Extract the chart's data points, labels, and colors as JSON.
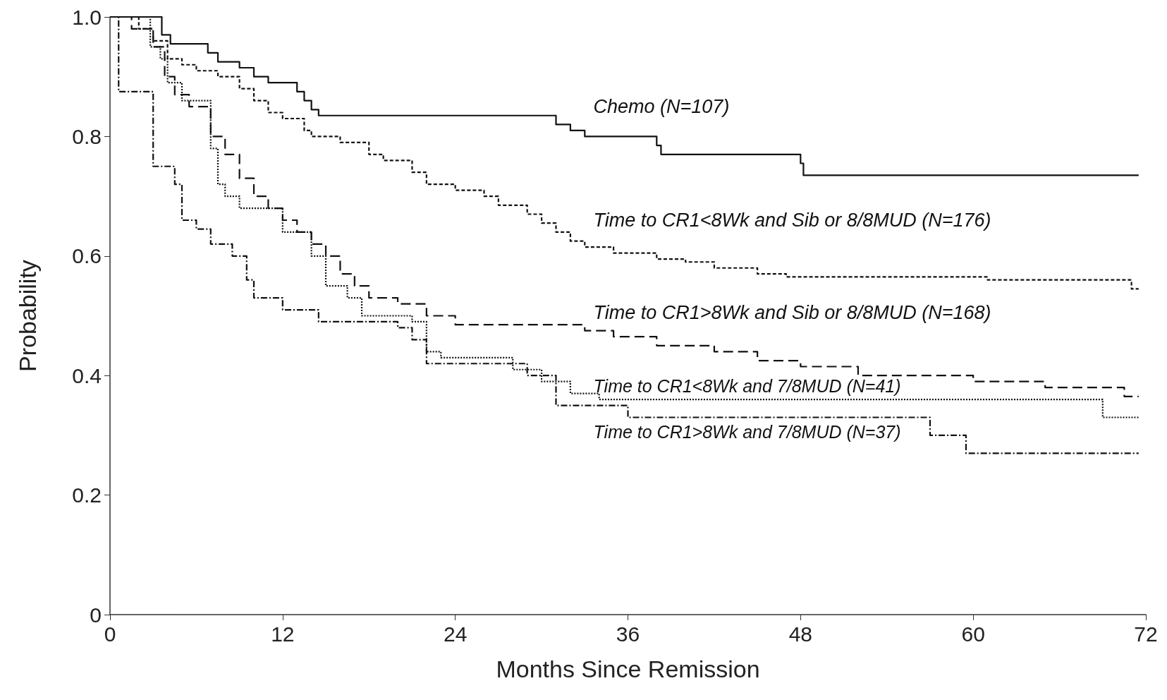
{
  "chart_data": {
    "type": "step",
    "xlabel": "Months Since Remission",
    "ylabel": "Probability",
    "xlim": [
      0,
      72
    ],
    "xticks": [
      0,
      12,
      24,
      36,
      48,
      60,
      72
    ],
    "ylim": [
      0,
      1
    ],
    "yticks": [
      0,
      0.2,
      0.4,
      0.6,
      0.8,
      {
        "value": 1,
        "label": "1.0"
      }
    ],
    "grid": false,
    "legend": false,
    "marker": "none",
    "series": [
      {
        "name": "Chemo (N=107)",
        "color": "#111111",
        "line_style": "solid",
        "x": [
          0,
          3.6,
          4.2,
          6.8,
          7.5,
          9,
          10,
          11,
          13,
          13.5,
          14,
          14.5,
          31,
          32,
          33,
          38,
          38.3,
          48,
          48.2,
          71.5
        ],
        "values": [
          1,
          0.97,
          0.955,
          0.94,
          0.925,
          0.915,
          0.9,
          0.89,
          0.875,
          0.86,
          0.845,
          0.835,
          0.82,
          0.81,
          0.8,
          0.785,
          0.77,
          0.755,
          0.735,
          0.735
        ]
      },
      {
        "name": "Time to CR1<8Wk and Sib or 8/8MUD (N=176)",
        "color": "#111111",
        "line_style": "dashed",
        "x": [
          0,
          2,
          3,
          4,
          5,
          6,
          7.5,
          9,
          10,
          11,
          12,
          13.5,
          14,
          16,
          18,
          19,
          21,
          22,
          24,
          26,
          27,
          29,
          30,
          31,
          32,
          33,
          35,
          38,
          40,
          42,
          45,
          47,
          61,
          71,
          71.5
        ],
        "values": [
          1,
          0.98,
          0.96,
          0.93,
          0.92,
          0.91,
          0.9,
          0.88,
          0.86,
          0.84,
          0.83,
          0.81,
          0.8,
          0.79,
          0.77,
          0.76,
          0.74,
          0.72,
          0.71,
          0.7,
          0.685,
          0.67,
          0.655,
          0.64,
          0.625,
          0.615,
          0.605,
          0.595,
          0.59,
          0.58,
          0.57,
          0.565,
          0.56,
          0.545,
          0.545
        ]
      },
      {
        "name": "Time to CR1>8Wk and Sib or 8/8MUD (N=168)",
        "color": "#111111",
        "line_style": "longdash",
        "x": [
          0,
          1.5,
          3,
          3.8,
          4.5,
          5.5,
          7,
          8,
          9,
          10,
          11,
          12,
          13,
          14,
          15,
          16,
          17,
          18,
          20,
          22,
          24,
          33,
          35,
          38,
          42,
          45,
          48,
          52,
          60,
          65,
          70.5,
          71.5
        ],
        "values": [
          1,
          0.98,
          0.95,
          0.9,
          0.87,
          0.85,
          0.8,
          0.77,
          0.73,
          0.7,
          0.68,
          0.66,
          0.64,
          0.62,
          0.6,
          0.57,
          0.55,
          0.53,
          0.52,
          0.5,
          0.485,
          0.475,
          0.465,
          0.45,
          0.44,
          0.425,
          0.415,
          0.4,
          0.39,
          0.38,
          0.365,
          0.365
        ]
      },
      {
        "name": "Time to CR1<8Wk and 7/8MUD (N=41)",
        "color": "#111111",
        "line_style": "dotted",
        "x": [
          0,
          2.8,
          3.5,
          4,
          5,
          7,
          7.5,
          8,
          9,
          12,
          14,
          15,
          16.5,
          17.5,
          21,
          22,
          23,
          28,
          30,
          32,
          34,
          69,
          71.5
        ],
        "values": [
          1,
          0.95,
          0.93,
          0.89,
          0.86,
          0.78,
          0.72,
          0.7,
          0.68,
          0.64,
          0.6,
          0.55,
          0.53,
          0.5,
          0.49,
          0.44,
          0.43,
          0.41,
          0.39,
          0.37,
          0.36,
          0.33,
          0.33
        ]
      },
      {
        "name": "Time to CR1>8Wk and 7/8MUD (N=37)",
        "color": "#111111",
        "line_style": "dashdot",
        "x": [
          0,
          0.6,
          3,
          4.5,
          5,
          6,
          7,
          8.5,
          9.5,
          10,
          12,
          14.5,
          20,
          21,
          22,
          29,
          31,
          36,
          57,
          59.5,
          71.5
        ],
        "values": [
          1,
          0.875,
          0.75,
          0.72,
          0.66,
          0.645,
          0.62,
          0.6,
          0.56,
          0.53,
          0.51,
          0.49,
          0.48,
          0.46,
          0.42,
          0.4,
          0.35,
          0.33,
          0.3,
          0.27,
          0.27
        ]
      }
    ]
  }
}
